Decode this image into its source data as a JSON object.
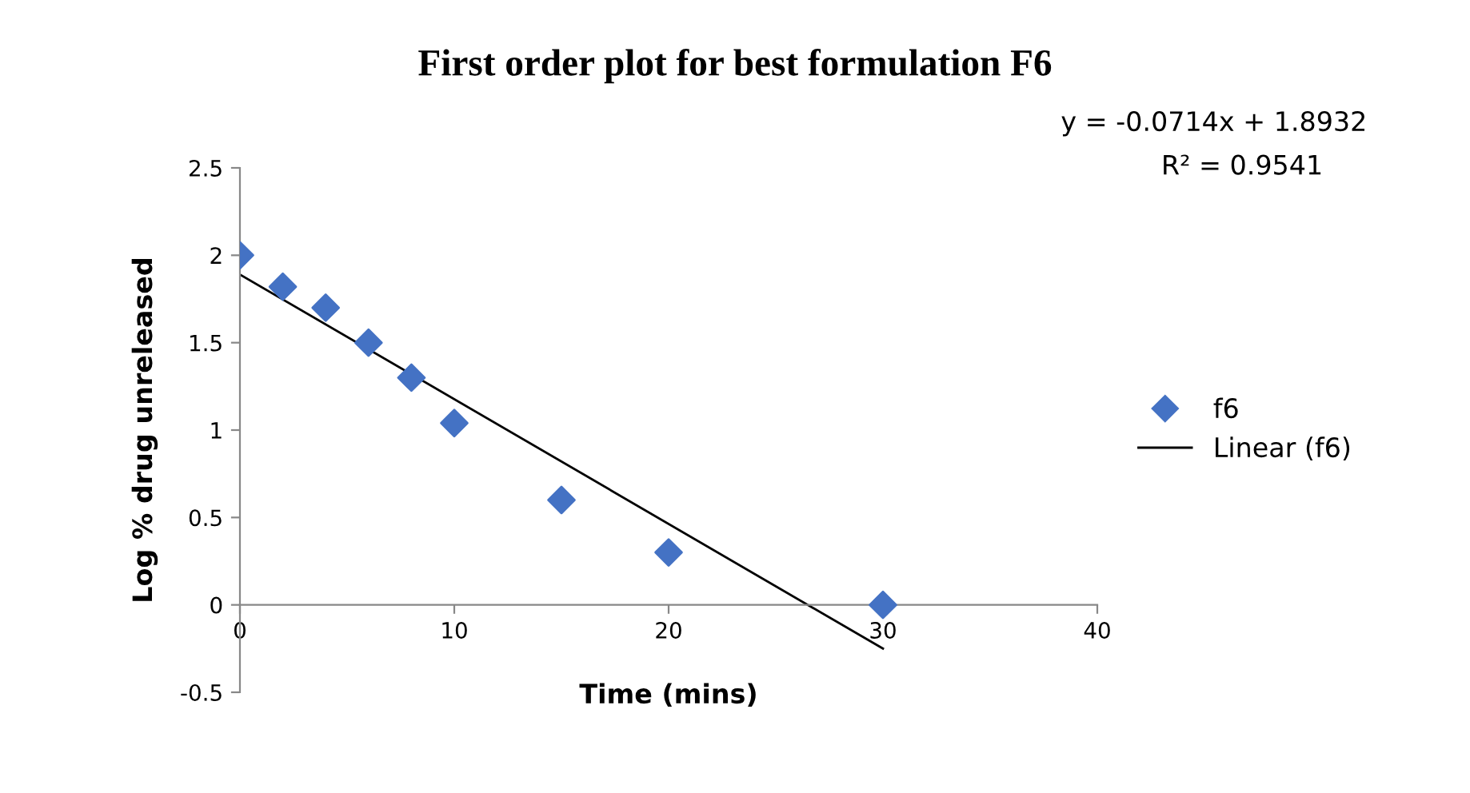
{
  "chart_data": {
    "type": "scatter",
    "title": "First order plot for best formulation F6",
    "xlabel": "Time (mins)",
    "ylabel": "Log % drug unreleased",
    "annotations": [
      "y = -0.0714x + 1.8932",
      "R² = 0.9541"
    ],
    "series": [
      {
        "name": "f6",
        "color": "#4472c4",
        "marker": "diamond",
        "x": [
          0,
          2,
          4,
          6,
          8,
          10,
          15,
          20,
          30
        ],
        "values": [
          2.0,
          1.82,
          1.7,
          1.5,
          1.3,
          1.04,
          0.6,
          0.3,
          0.0
        ]
      },
      {
        "name": "Linear (f6)",
        "type": "line",
        "color": "#000000",
        "line_style": "solid",
        "x": [
          0,
          30
        ],
        "values": [
          1.89,
          -0.25
        ]
      }
    ],
    "xlim": [
      0,
      40
    ],
    "xticks": [
      0,
      10,
      20,
      30,
      40
    ],
    "ylim": [
      -0.5,
      2.5
    ],
    "yticks": [
      -0.5,
      0,
      0.5,
      1,
      1.5,
      2,
      2.5
    ],
    "grid": false,
    "legend": "right"
  }
}
